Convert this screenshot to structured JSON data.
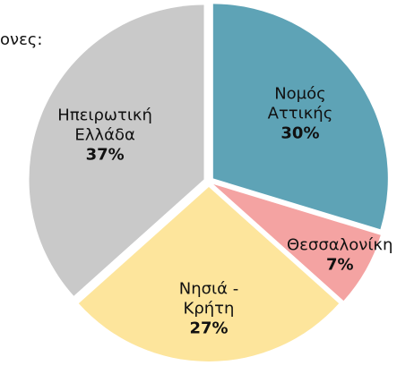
{
  "chart_data": {
    "type": "pie",
    "title": "ονες:",
    "categories": [
      [
        "Νομός",
        "Αττικής"
      ],
      [
        "Θεσσαλονίκη"
      ],
      [
        "Νησιά -",
        "Κρήτη"
      ],
      [
        "Ηπειρωτική",
        "Ελλάδα"
      ]
    ],
    "values": [
      30,
      7,
      27,
      37
    ],
    "value_labels": [
      "30%",
      "7%",
      "27%",
      "37%"
    ],
    "colors": [
      "#5ea3b6",
      "#f4a3a2",
      "#fde59c",
      "#c9c9c9"
    ]
  }
}
